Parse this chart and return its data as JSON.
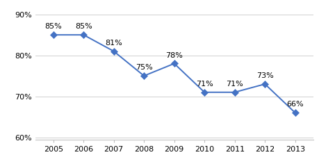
{
  "years": [
    2005,
    2006,
    2007,
    2008,
    2009,
    2010,
    2011,
    2012,
    2013
  ],
  "values": [
    0.85,
    0.85,
    0.81,
    0.75,
    0.78,
    0.71,
    0.71,
    0.73,
    0.66
  ],
  "labels": [
    "85%",
    "85%",
    "81%",
    "75%",
    "78%",
    "71%",
    "71%",
    "73%",
    "66%"
  ],
  "line_color": "#4472C4",
  "marker_color": "#4472C4",
  "background_color": "#ffffff",
  "plot_bg_color": "#ffffff",
  "border_color": "#c0c0c0",
  "grid_color": "#c8c8c8",
  "ylim": [
    0.595,
    0.915
  ],
  "yticks": [
    0.6,
    0.7,
    0.8,
    0.9
  ],
  "ytick_labels": [
    "60%",
    "70%",
    "80%",
    "90%"
  ],
  "label_fontsize": 8,
  "tick_fontsize": 8
}
